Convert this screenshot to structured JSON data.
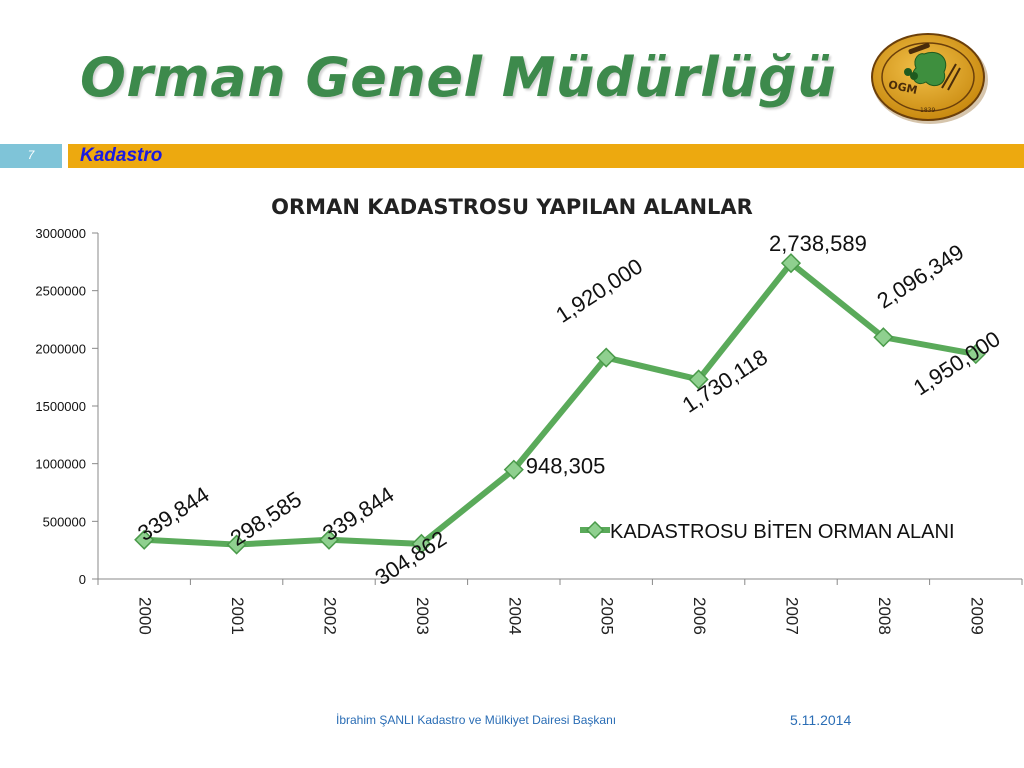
{
  "slide": {
    "title": "Orman Genel Müdürlüğü",
    "number": "7",
    "section": "Kadastro",
    "footer_author": "İbrahim ŞANLI Kadastro ve Mülkiyet Dairesi Başkanı",
    "footer_date": "5.11.2014",
    "logo": {
      "text": "OGM",
      "year": "1839",
      "icon": "forestry-emblem-icon"
    }
  },
  "colors": {
    "title": "#3d8a4c",
    "section_bar": "#eda90f",
    "section_text": "#1a1ae0",
    "slide_number_bg": "#7fc4d8",
    "series_line": "#5aaa5a",
    "footer": "#2a6db5"
  },
  "chart_data": {
    "type": "line",
    "title": "ORMAN KADASTROSU YAPILAN ALANLAR",
    "xlabel": "",
    "ylabel": "",
    "categories": [
      "2000",
      "2001",
      "2002",
      "2003",
      "2004",
      "2005",
      "2006",
      "2007",
      "2008",
      "2009"
    ],
    "series": [
      {
        "name": "KADASTROSU BİTEN ORMAN ALANI",
        "values": [
          339844,
          298585,
          339844,
          304862,
          948305,
          1920000,
          1730118,
          2738589,
          2096349,
          1950000
        ],
        "labels": [
          "339,844",
          "298,585",
          "339,844",
          "304,862",
          "948,305",
          "1,920,000",
          "1,730,118",
          "2,738,589",
          "2,096,349",
          "1,950,000"
        ]
      }
    ],
    "yticks": [
      "0",
      "500000",
      "1000000",
      "1500000",
      "2000000",
      "2500000",
      "3000000"
    ],
    "ylim": [
      0,
      3000000
    ],
    "grid": false,
    "legend": "right",
    "marker": "diamond"
  }
}
